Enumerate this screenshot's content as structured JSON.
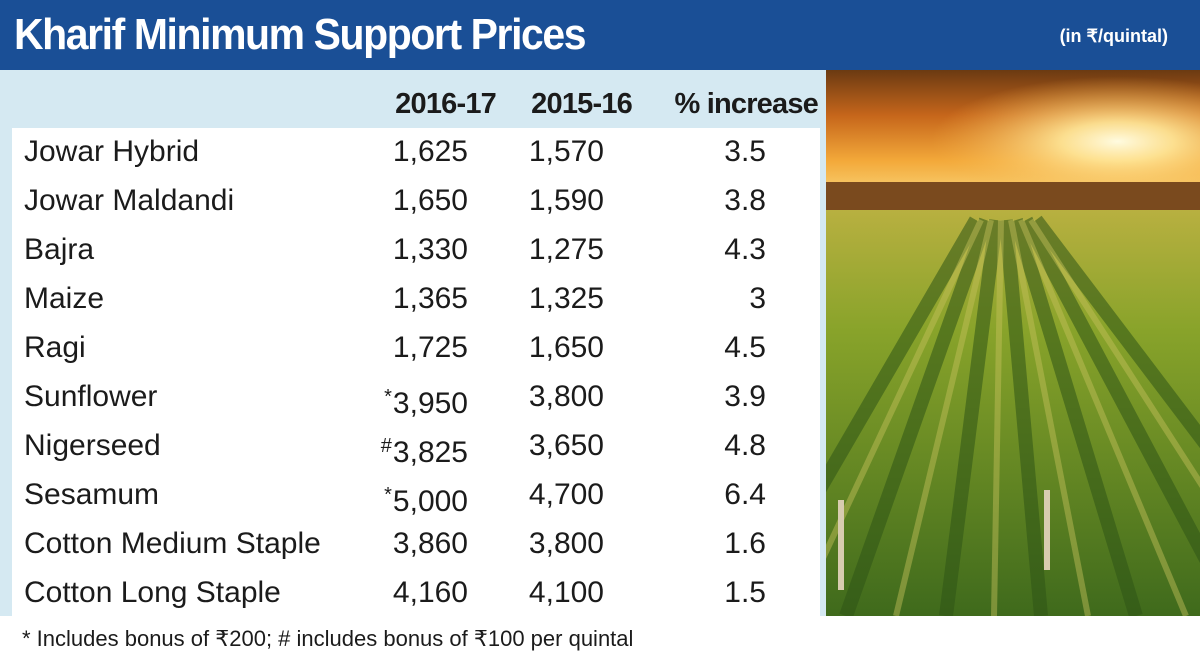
{
  "header": {
    "title": "Kharif Minimum Support Prices",
    "unit": "(in ₹/quintal)"
  },
  "columns": [
    "2016-17",
    "2015-16",
    "% increase"
  ],
  "rows": [
    {
      "crop": "Jowar Hybrid",
      "mark": "",
      "y2016": "1,625",
      "y2015": "1,570",
      "increase": "3.5"
    },
    {
      "crop": "Jowar Maldandi",
      "mark": "",
      "y2016": "1,650",
      "y2015": "1,590",
      "increase": "3.8"
    },
    {
      "crop": "Bajra",
      "mark": "",
      "y2016": "1,330",
      "y2015": "1,275",
      "increase": "4.3"
    },
    {
      "crop": "Maize",
      "mark": "",
      "y2016": "1,365",
      "y2015": "1,325",
      "increase": "3"
    },
    {
      "crop": "Ragi",
      "mark": "",
      "y2016": "1,725",
      "y2015": "1,650",
      "increase": "4.5"
    },
    {
      "crop": "Sunflower",
      "mark": "*",
      "y2016": "3,950",
      "y2015": "3,800",
      "increase": "3.9"
    },
    {
      "crop": "Nigerseed",
      "mark": "#",
      "y2016": "3,825",
      "y2015": "3,650",
      "increase": "4.8"
    },
    {
      "crop": "Sesamum",
      "mark": "*",
      "y2016": "5,000",
      "y2015": "4,700",
      "increase": "6.4"
    },
    {
      "crop": "Cotton Medium Staple",
      "mark": "",
      "y2016": "3,860",
      "y2015": "3,800",
      "increase": "1.6"
    },
    {
      "crop": "Cotton Long Staple",
      "mark": "",
      "y2016": "4,160",
      "y2015": "4,100",
      "increase": "1.5"
    }
  ],
  "footnote": "* Includes bonus of ₹200; # includes bonus of ₹100 per quintal",
  "colors": {
    "header_bg": "#1a4f96",
    "panel_bg": "#d5e9f2",
    "row_bg": "#ffffff",
    "text": "#1b1b1b"
  },
  "image": {
    "name": "crop-field-sunset-photo"
  }
}
